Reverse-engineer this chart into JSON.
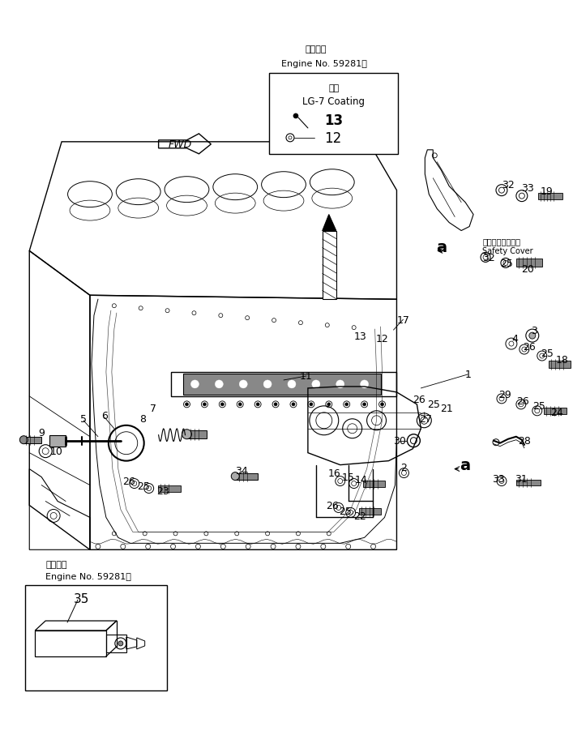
{
  "bg": "#ffffff",
  "figsize": [
    7.07,
    9.03
  ],
  "dpi": 100,
  "top_label1": "適用号機",
  "top_label2": "Engine No. 59281～",
  "coating_label1": "途布",
  "coating_label2": "LG-7 Coating",
  "safety_jp": "セーフティカバー",
  "safety_en": "Safety Cover",
  "fwd_text": "FWD",
  "bottom_label1": "適用号機",
  "bottom_label2": "Engine No. 59281～"
}
